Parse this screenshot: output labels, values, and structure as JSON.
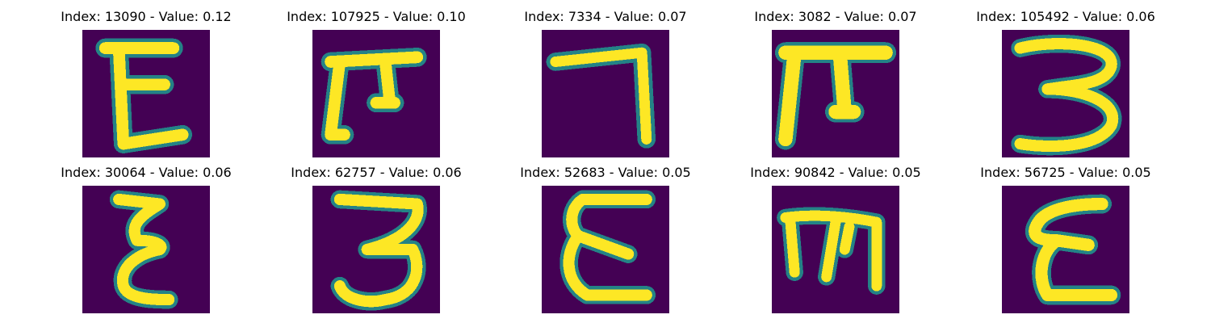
{
  "figure": {
    "colors": {
      "background": "#440154",
      "low": "#3b528b",
      "mid": "#21918c",
      "high": "#5ec962",
      "peak": "#fde725"
    },
    "panels": [
      {
        "title": "Index: 13090 - Value: 0.12",
        "glyph": "E-like"
      },
      {
        "title": "Index: 107925 - Value: 0.10",
        "glyph": "pi-like"
      },
      {
        "title": "Index: 7334 - Value: 0.07",
        "glyph": "seven-like"
      },
      {
        "title": "Index: 3082 - Value: 0.07",
        "glyph": "pi-like"
      },
      {
        "title": "Index: 105492 - Value: 0.06",
        "glyph": "three-like"
      },
      {
        "title": "Index: 30064 - Value: 0.06",
        "glyph": "epsilon-like"
      },
      {
        "title": "Index: 62757 - Value: 0.06",
        "glyph": "three-like"
      },
      {
        "title": "Index: 52683 - Value: 0.05",
        "glyph": "epsilon-like"
      },
      {
        "title": "Index: 90842 - Value: 0.05",
        "glyph": "m-like"
      },
      {
        "title": "Index: 56725 - Value: 0.05",
        "glyph": "epsilon-like"
      }
    ]
  }
}
